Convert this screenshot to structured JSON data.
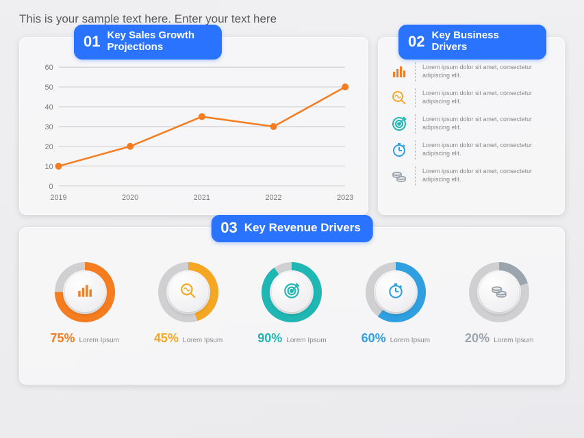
{
  "subtitle": "This is your sample text here. Enter your text here",
  "palette": {
    "accent": "#2973ff",
    "orange": "#f57c1f",
    "yellow": "#f5a623",
    "teal": "#1fb6b3",
    "blue": "#2f9fe0",
    "grayTrack": "#d0d0d2",
    "textMuted": "#888888",
    "axis": "#7a7a7a",
    "grid": "#c9c9c9",
    "cardBg": "rgba(248,248,250,0.75)"
  },
  "sections": {
    "sales": {
      "num": "01",
      "title": "Key Sales Growth Projections",
      "chart": {
        "type": "line",
        "years": [
          "2019",
          "2020",
          "2021",
          "2022",
          "2023"
        ],
        "values": [
          10,
          20,
          35,
          30,
          50
        ],
        "ylim": [
          0,
          60
        ],
        "ytick_step": 10,
        "line_color": "#f57c1f",
        "line_width": 2.5,
        "marker": "circle",
        "marker_size": 5,
        "marker_fill": "#f57c1f",
        "label_fontsize": 11,
        "grid_color": "#c9c9c9"
      }
    },
    "business": {
      "num": "02",
      "title": "Key Business Drivers",
      "items": [
        {
          "icon": "bars",
          "color": "#f57c1f",
          "text": "Lorem ipsum dolor sit amet, consectetur adipiscing elit."
        },
        {
          "icon": "search",
          "color": "#f5a623",
          "text": "Lorem ipsum dolor sit amet, consectetur adipiscing elit."
        },
        {
          "icon": "target",
          "color": "#1fb6b3",
          "text": "Lorem ipsum dolor sit amet, consectetur adipiscing elit."
        },
        {
          "icon": "clock",
          "color": "#2f9fe0",
          "text": "Lorem ipsum dolor sit amet, consectetur adipiscing elit."
        },
        {
          "icon": "coins",
          "color": "#9aa5ad",
          "text": "Lorem ipsum dolor sit amet, consectetur adipiscing elit."
        }
      ]
    },
    "revenue": {
      "num": "03",
      "title": "Key Revenue Drivers",
      "donuts": [
        {
          "icon": "bars",
          "color": "#f57c1f",
          "pct": 75,
          "label": "75%",
          "caption": "Lorem Ipsum"
        },
        {
          "icon": "search",
          "color": "#f5a623",
          "pct": 45,
          "label": "45%",
          "caption": "Lorem Ipsum"
        },
        {
          "icon": "target",
          "color": "#1fb6b3",
          "pct": 90,
          "label": "90%",
          "caption": "Lorem Ipsum"
        },
        {
          "icon": "clock",
          "color": "#2f9fe0",
          "pct": 60,
          "label": "60%",
          "caption": "Lorem Ipsum"
        },
        {
          "icon": "coins",
          "color": "#9aa5ad",
          "pct": 20,
          "label": "20%",
          "caption": "Lorem Ipsum"
        }
      ],
      "donut_style": {
        "outer_radius": 44,
        "thickness": 12,
        "track_color": "#d0d0d2",
        "start_angle_deg": -90,
        "inner_button_diameter": 58
      }
    }
  }
}
